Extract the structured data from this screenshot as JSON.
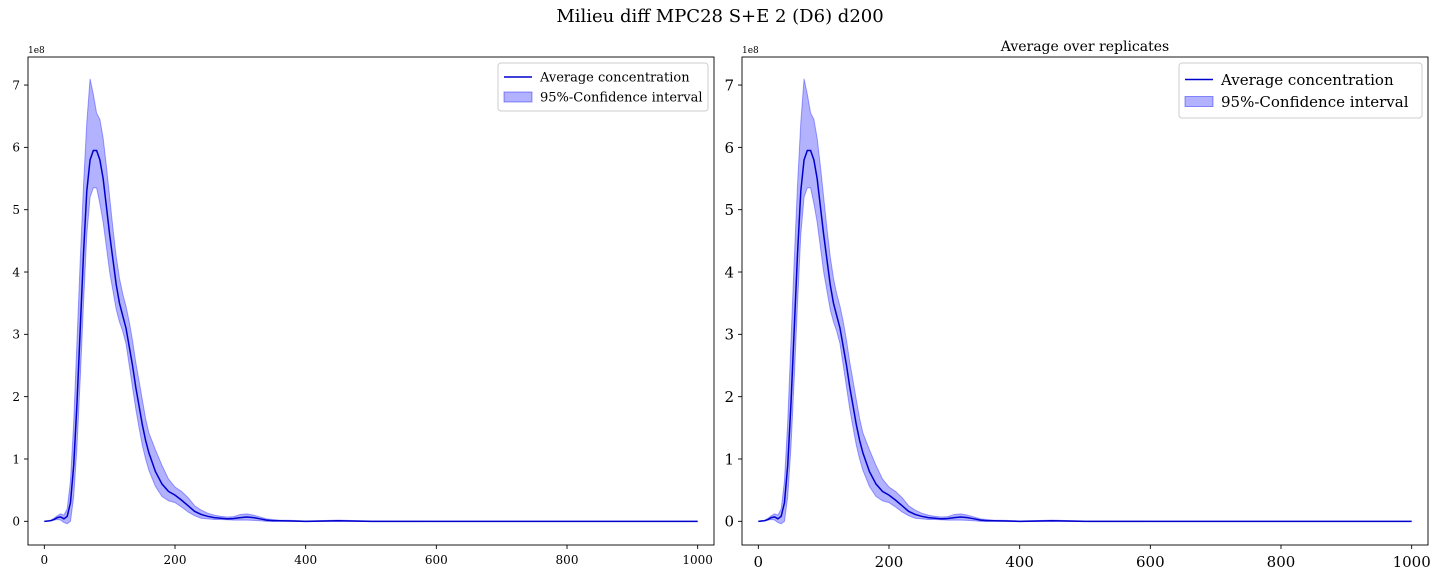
{
  "figure": {
    "suptitle": "Milieu diff MPC28 S+E 2 (D6) d200"
  },
  "chart_data": [
    {
      "type": "line",
      "title": "",
      "xlabel": "",
      "ylabel": "",
      "offset_label": "1e8",
      "xlim": [
        -25,
        1025
      ],
      "ylim": [
        -0.38,
        7.45
      ],
      "x_ticks": [
        0,
        200,
        400,
        600,
        800,
        1000
      ],
      "y_ticks": [
        0,
        1,
        2,
        3,
        4,
        5,
        6,
        7
      ],
      "grid": false,
      "legend_position": "upper right",
      "series": [
        {
          "name": "Average concentration",
          "kind": "line",
          "color": "#0000cc",
          "x": [
            0,
            10,
            15,
            20,
            25,
            30,
            35,
            40,
            45,
            50,
            55,
            60,
            65,
            70,
            75,
            80,
            85,
            90,
            95,
            100,
            105,
            110,
            115,
            120,
            125,
            130,
            135,
            140,
            145,
            150,
            155,
            160,
            170,
            180,
            190,
            200,
            210,
            220,
            230,
            240,
            250,
            260,
            270,
            280,
            290,
            300,
            310,
            320,
            330,
            340,
            350,
            360,
            380,
            400,
            450,
            500,
            600,
            800,
            1000
          ],
          "y": [
            0,
            0.01,
            0.03,
            0.06,
            0.07,
            0.04,
            0.08,
            0.3,
            0.9,
            1.9,
            3.1,
            4.3,
            5.3,
            5.8,
            5.95,
            5.95,
            5.8,
            5.5,
            5.05,
            4.6,
            4.2,
            3.8,
            3.5,
            3.3,
            3.1,
            2.8,
            2.5,
            2.15,
            1.85,
            1.55,
            1.3,
            1.1,
            0.8,
            0.6,
            0.48,
            0.42,
            0.34,
            0.25,
            0.16,
            0.11,
            0.08,
            0.06,
            0.05,
            0.04,
            0.045,
            0.06,
            0.07,
            0.06,
            0.04,
            0.02,
            0.01,
            0.01,
            0.005,
            0,
            0.01,
            0,
            0,
            0,
            0
          ]
        },
        {
          "name": "95%-Confidence interval",
          "kind": "band",
          "color": "#0000ff",
          "x": [
            0,
            10,
            15,
            20,
            25,
            30,
            35,
            40,
            45,
            50,
            55,
            60,
            65,
            70,
            75,
            80,
            85,
            90,
            95,
            100,
            105,
            110,
            115,
            120,
            125,
            130,
            135,
            140,
            145,
            150,
            155,
            160,
            170,
            180,
            190,
            200,
            210,
            220,
            230,
            240,
            250,
            260,
            270,
            280,
            290,
            300,
            310,
            320,
            330,
            340,
            350,
            360,
            380,
            400,
            450,
            500,
            600,
            800,
            1000
          ],
          "lower": [
            0,
            0.005,
            0.02,
            0.03,
            0.02,
            -0.02,
            -0.04,
            0,
            0.4,
            1.2,
            2.3,
            3.5,
            4.6,
            5.2,
            5.35,
            5.35,
            5.1,
            4.8,
            4.4,
            4.0,
            3.7,
            3.4,
            3.2,
            3.05,
            2.85,
            2.5,
            2.15,
            1.8,
            1.5,
            1.22,
            1.0,
            0.82,
            0.56,
            0.4,
            0.33,
            0.3,
            0.23,
            0.15,
            0.09,
            0.05,
            0.04,
            0.03,
            0.03,
            0.025,
            0.02,
            0.02,
            0.02,
            0.015,
            0.01,
            0,
            0,
            0,
            0,
            -0.005,
            0,
            0,
            0,
            0,
            0
          ],
          "upper": [
            0,
            0.02,
            0.05,
            0.09,
            0.12,
            0.1,
            0.2,
            0.65,
            1.6,
            2.9,
            4.2,
            5.4,
            6.4,
            7.1,
            6.85,
            6.55,
            6.45,
            6.15,
            5.7,
            5.2,
            4.7,
            4.25,
            3.9,
            3.65,
            3.45,
            3.2,
            2.9,
            2.55,
            2.25,
            1.95,
            1.65,
            1.42,
            1.15,
            0.9,
            0.68,
            0.55,
            0.48,
            0.38,
            0.25,
            0.18,
            0.13,
            0.1,
            0.08,
            0.07,
            0.075,
            0.11,
            0.12,
            0.1,
            0.07,
            0.04,
            0.03,
            0.02,
            0.015,
            0.005,
            0.02,
            0.005,
            0,
            0,
            0
          ]
        }
      ]
    },
    {
      "type": "line",
      "title": "Average over replicates",
      "xlabel": "",
      "ylabel": "",
      "offset_label": "1e8",
      "xlim": [
        -25,
        1025
      ],
      "ylim": [
        -0.38,
        7.45
      ],
      "x_ticks": [
        0,
        200,
        400,
        600,
        800,
        1000
      ],
      "y_ticks": [
        0,
        1,
        2,
        3,
        4,
        5,
        6,
        7
      ],
      "grid": false,
      "legend_position": "upper right",
      "series": [
        {
          "name": "Average concentration",
          "kind": "line",
          "color": "#0000cc",
          "x": [
            0,
            10,
            15,
            20,
            25,
            30,
            35,
            40,
            45,
            50,
            55,
            60,
            65,
            70,
            75,
            80,
            85,
            90,
            95,
            100,
            105,
            110,
            115,
            120,
            125,
            130,
            135,
            140,
            145,
            150,
            155,
            160,
            170,
            180,
            190,
            200,
            210,
            220,
            230,
            240,
            250,
            260,
            270,
            280,
            290,
            300,
            310,
            320,
            330,
            340,
            350,
            360,
            380,
            400,
            450,
            500,
            600,
            800,
            1000
          ],
          "y": [
            0,
            0.01,
            0.03,
            0.06,
            0.07,
            0.04,
            0.08,
            0.3,
            0.9,
            1.9,
            3.1,
            4.3,
            5.3,
            5.8,
            5.95,
            5.95,
            5.8,
            5.5,
            5.05,
            4.6,
            4.2,
            3.8,
            3.5,
            3.3,
            3.1,
            2.8,
            2.5,
            2.15,
            1.85,
            1.55,
            1.3,
            1.1,
            0.8,
            0.6,
            0.48,
            0.42,
            0.34,
            0.25,
            0.16,
            0.11,
            0.08,
            0.06,
            0.05,
            0.04,
            0.045,
            0.06,
            0.07,
            0.06,
            0.04,
            0.02,
            0.01,
            0.01,
            0.005,
            0,
            0.01,
            0,
            0,
            0,
            0
          ]
        },
        {
          "name": "95%-Confidence interval",
          "kind": "band",
          "color": "#0000ff",
          "x": [
            0,
            10,
            15,
            20,
            25,
            30,
            35,
            40,
            45,
            50,
            55,
            60,
            65,
            70,
            75,
            80,
            85,
            90,
            95,
            100,
            105,
            110,
            115,
            120,
            125,
            130,
            135,
            140,
            145,
            150,
            155,
            160,
            170,
            180,
            190,
            200,
            210,
            220,
            230,
            240,
            250,
            260,
            270,
            280,
            290,
            300,
            310,
            320,
            330,
            340,
            350,
            360,
            380,
            400,
            450,
            500,
            600,
            800,
            1000
          ],
          "lower": [
            0,
            0.005,
            0.02,
            0.03,
            0.02,
            -0.02,
            -0.04,
            0,
            0.4,
            1.2,
            2.3,
            3.5,
            4.6,
            5.2,
            5.35,
            5.35,
            5.1,
            4.8,
            4.4,
            4.0,
            3.7,
            3.4,
            3.2,
            3.05,
            2.85,
            2.5,
            2.15,
            1.8,
            1.5,
            1.22,
            1.0,
            0.82,
            0.56,
            0.4,
            0.33,
            0.3,
            0.23,
            0.15,
            0.09,
            0.05,
            0.04,
            0.03,
            0.03,
            0.025,
            0.02,
            0.02,
            0.02,
            0.015,
            0.01,
            0,
            0,
            0,
            0,
            -0.005,
            0,
            0,
            0,
            0,
            0
          ],
          "upper": [
            0,
            0.02,
            0.05,
            0.09,
            0.12,
            0.1,
            0.2,
            0.65,
            1.6,
            2.9,
            4.2,
            5.4,
            6.4,
            7.1,
            6.85,
            6.55,
            6.45,
            6.15,
            5.7,
            5.2,
            4.7,
            4.25,
            3.9,
            3.65,
            3.45,
            3.2,
            2.9,
            2.55,
            2.25,
            1.95,
            1.65,
            1.42,
            1.15,
            0.9,
            0.68,
            0.55,
            0.48,
            0.38,
            0.25,
            0.18,
            0.13,
            0.1,
            0.08,
            0.07,
            0.075,
            0.11,
            0.12,
            0.1,
            0.07,
            0.04,
            0.03,
            0.02,
            0.015,
            0.005,
            0.02,
            0.005,
            0,
            0,
            0
          ]
        }
      ]
    }
  ]
}
